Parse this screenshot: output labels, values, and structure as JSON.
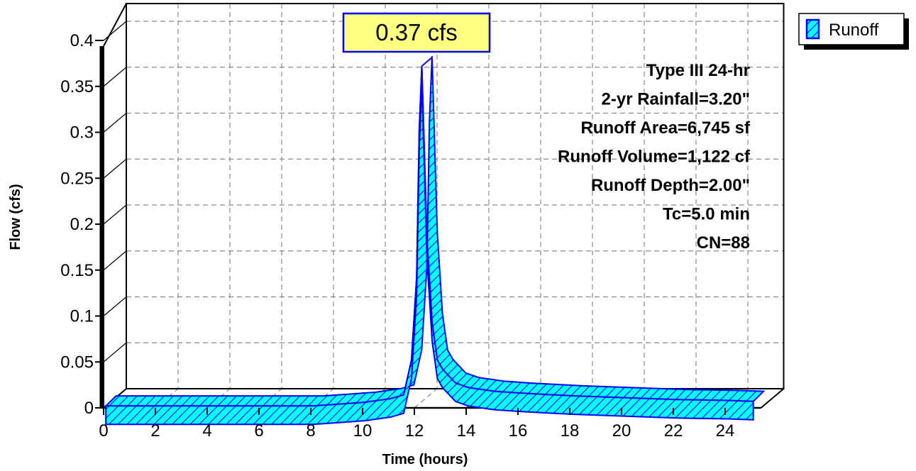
{
  "chart_data": {
    "type": "area",
    "xlabel": "Time  (hours)",
    "ylabel": "Flow  (cfs)",
    "xlim": [
      0,
      25
    ],
    "ylim": [
      0,
      0.4
    ],
    "x_ticks": [
      "0",
      "2",
      "4",
      "6",
      "8",
      "10",
      "12",
      "14",
      "16",
      "18",
      "20",
      "22",
      "24"
    ],
    "y_ticks": [
      "0",
      "0.05",
      "0.1",
      "0.15",
      "0.2",
      "0.25",
      "0.3",
      "0.35",
      "0.4"
    ],
    "grid": true,
    "legend": "top-right",
    "peak_label": "0.37 cfs",
    "series": [
      {
        "name": "Runoff",
        "color": "#00ffff",
        "edge_color": "#0000ff",
        "x": [
          0,
          2,
          4,
          6,
          8,
          9,
          10,
          11,
          11.5,
          11.8,
          12.0,
          12.1,
          12.2,
          12.4,
          12.6,
          12.8,
          13.0,
          13.5,
          14,
          15,
          16,
          18,
          20,
          22,
          24,
          25
        ],
        "y": [
          0,
          0,
          0,
          0,
          0,
          0.002,
          0.004,
          0.008,
          0.012,
          0.05,
          0.14,
          0.3,
          0.37,
          0.18,
          0.09,
          0.05,
          0.04,
          0.025,
          0.02,
          0.016,
          0.014,
          0.011,
          0.009,
          0.007,
          0.006,
          0.005
        ]
      }
    ],
    "annotations": [
      "Type III 24-hr",
      "2-yr Rainfall=3.20\"",
      "Runoff Area=6,745 sf",
      "Runoff Volume=1,122 cf",
      "Runoff Depth=2.00\"",
      "Tc=5.0 min",
      "CN=88"
    ]
  }
}
